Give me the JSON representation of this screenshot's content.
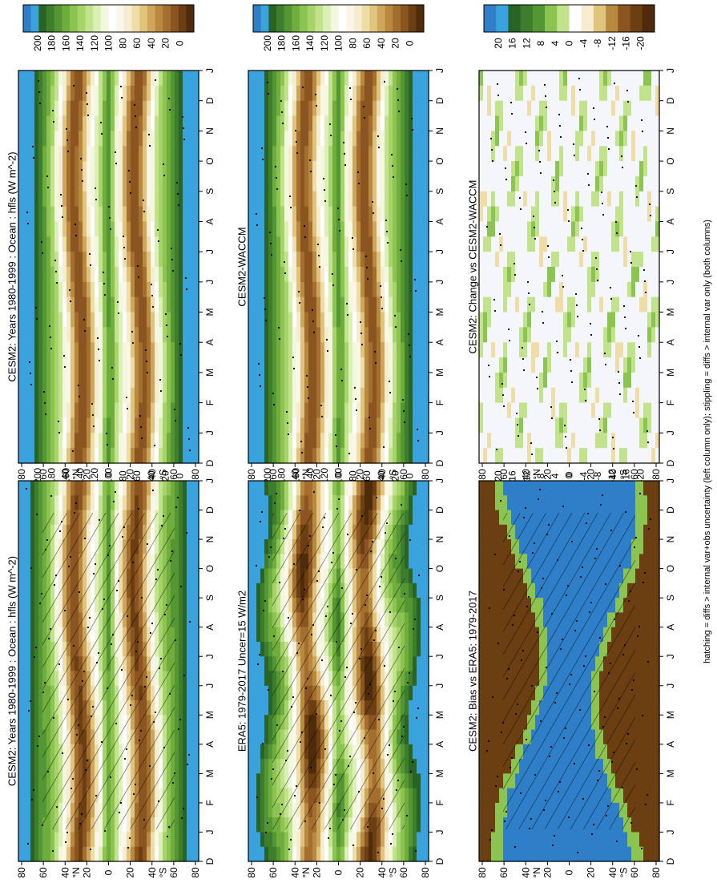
{
  "footnote": "hatching = diffs > internal var+obs uncertainty (left column only); stippling = diffs > internal var only (both columns)",
  "colors": {
    "ramp_abs": [
      "#4e2c0b",
      "#6b3f12",
      "#8a5520",
      "#a46e2e",
      "#b98940",
      "#cda55c",
      "#e0c47e",
      "#efdda8",
      "#f6ecd0",
      "#fbf6e8",
      "#ffffff",
      "#f2f8e0",
      "#dcefb4",
      "#c2e38c",
      "#a6d46a",
      "#8cc452",
      "#6fae3c",
      "#559634",
      "#3e7d2c",
      "#2a6424",
      "#3aa3dd",
      "#2f7fc8"
    ],
    "hatch": "#000000"
  },
  "chart_data": [
    {
      "type": "heatmap",
      "panel": "cesm2-climatology",
      "title": "CESM2: Years 1980-1999 : Ocean : hfls (W m^-2)",
      "xlabel": "",
      "ylabel": "",
      "x_ticks": [
        "D",
        "J",
        "F",
        "M",
        "A",
        "M",
        "J",
        "J",
        "A",
        "S",
        "O",
        "N",
        "D",
        "J"
      ],
      "y_ticks": [
        "80",
        "60",
        "40",
        "20",
        "0",
        "20",
        "40",
        "60",
        "80"
      ],
      "y_markers": [
        "N",
        "S"
      ],
      "colorbar_ticks": [
        "200",
        "180",
        "160",
        "140",
        "120",
        "100",
        "80",
        "60",
        "40",
        "20",
        "0"
      ],
      "levels": [
        0,
        20,
        40,
        60,
        80,
        100,
        120,
        140,
        160,
        180,
        200
      ],
      "hatched": true,
      "stippled": true
    },
    {
      "type": "heatmap",
      "panel": "cesm2-waccm-climatology",
      "title": "CESM2: Years 1980-1999 : Ocean : hfls (W m^-2)",
      "xlabel": "",
      "ylabel": "",
      "x_ticks": [
        "D",
        "J",
        "F",
        "M",
        "A",
        "M",
        "J",
        "J",
        "A",
        "S",
        "O",
        "N",
        "D",
        "J"
      ],
      "y_ticks": [
        "80",
        "60",
        "40",
        "20",
        "0",
        "20",
        "40",
        "60",
        "80"
      ],
      "y_markers": [
        "N",
        "S"
      ],
      "colorbar_ticks": [
        "200",
        "180",
        "160",
        "140",
        "120",
        "100",
        "80",
        "60",
        "40",
        "20",
        "0"
      ],
      "levels": [
        0,
        20,
        40,
        60,
        80,
        100,
        120,
        140,
        160,
        180,
        200
      ],
      "hatched": false,
      "stippled": true
    },
    {
      "type": "heatmap",
      "panel": "era5-reference",
      "title": "ERA5: 1979-2017 Uncer=15 W/m2",
      "xlabel": "",
      "ylabel": "",
      "x_ticks": [
        "D",
        "J",
        "F",
        "M",
        "A",
        "M",
        "J",
        "J",
        "A",
        "S",
        "O",
        "N",
        "D",
        "J"
      ],
      "y_ticks": [
        "80",
        "60",
        "40",
        "20",
        "0",
        "20",
        "40",
        "60",
        "80"
      ],
      "y_markers": [
        "N",
        "S"
      ],
      "colorbar_ticks": [
        "200",
        "180",
        "160",
        "140",
        "120",
        "100",
        "80",
        "60",
        "40",
        "20",
        "0"
      ],
      "levels": [
        0,
        20,
        40,
        60,
        80,
        100,
        120,
        140,
        160,
        180,
        200
      ],
      "hatched": true,
      "stippled": true
    },
    {
      "type": "heatmap",
      "panel": "cesm2-waccm-reference",
      "title": "CESM2-WACCM",
      "xlabel": "",
      "ylabel": "",
      "x_ticks": [
        "D",
        "J",
        "F",
        "M",
        "A",
        "M",
        "J",
        "J",
        "A",
        "S",
        "O",
        "N",
        "D",
        "J"
      ],
      "y_ticks": [
        "80",
        "60",
        "40",
        "20",
        "0",
        "20",
        "40",
        "60",
        "80"
      ],
      "y_markers": [
        "N",
        "S"
      ],
      "colorbar_ticks": [
        "200",
        "180",
        "160",
        "140",
        "120",
        "100",
        "80",
        "60",
        "40",
        "20",
        "0"
      ],
      "levels": [
        0,
        20,
        40,
        60,
        80,
        100,
        120,
        140,
        160,
        180,
        200
      ],
      "hatched": false,
      "stippled": true
    },
    {
      "type": "heatmap",
      "panel": "bias-vs-era5",
      "title": "CESM2: Bias vs ERA5: 1979-2017",
      "xlabel": "",
      "ylabel": "",
      "x_ticks": [
        "D",
        "J",
        "F",
        "M",
        "A",
        "M",
        "J",
        "J",
        "A",
        "S",
        "O",
        "N",
        "D",
        "J"
      ],
      "y_ticks": [
        "80",
        "60",
        "40",
        "20",
        "0",
        "20",
        "40",
        "60",
        "80"
      ],
      "y_markers": [
        "N",
        "S"
      ],
      "colorbar_ticks": [
        "20",
        "16",
        "12",
        "8",
        "4",
        "0",
        "-4",
        "-8",
        "-12",
        "-16",
        "-20"
      ],
      "levels": [
        -20,
        -16,
        -12,
        -8,
        -4,
        0,
        4,
        8,
        12,
        16,
        20
      ],
      "hatched": true,
      "stippled": true
    },
    {
      "type": "heatmap",
      "panel": "change-vs-waccm",
      "title": "CESM2: Change vs CESM2-WACCM",
      "xlabel": "",
      "ylabel": "",
      "x_ticks": [
        "D",
        "J",
        "F",
        "M",
        "A",
        "M",
        "J",
        "J",
        "A",
        "S",
        "O",
        "N",
        "D",
        "J"
      ],
      "y_ticks": [
        "80",
        "60",
        "40",
        "20",
        "0",
        "20",
        "40",
        "60",
        "80"
      ],
      "y_markers": [
        "N",
        "S"
      ],
      "colorbar_ticks": [
        "20",
        "16",
        "12",
        "8",
        "4",
        "0",
        "-4",
        "-8",
        "-12",
        "-16",
        "-20"
      ],
      "levels": [
        -20,
        -16,
        -12,
        -8,
        -4,
        0,
        4,
        8,
        12,
        16,
        20
      ],
      "hatched": false,
      "stippled": true
    }
  ]
}
